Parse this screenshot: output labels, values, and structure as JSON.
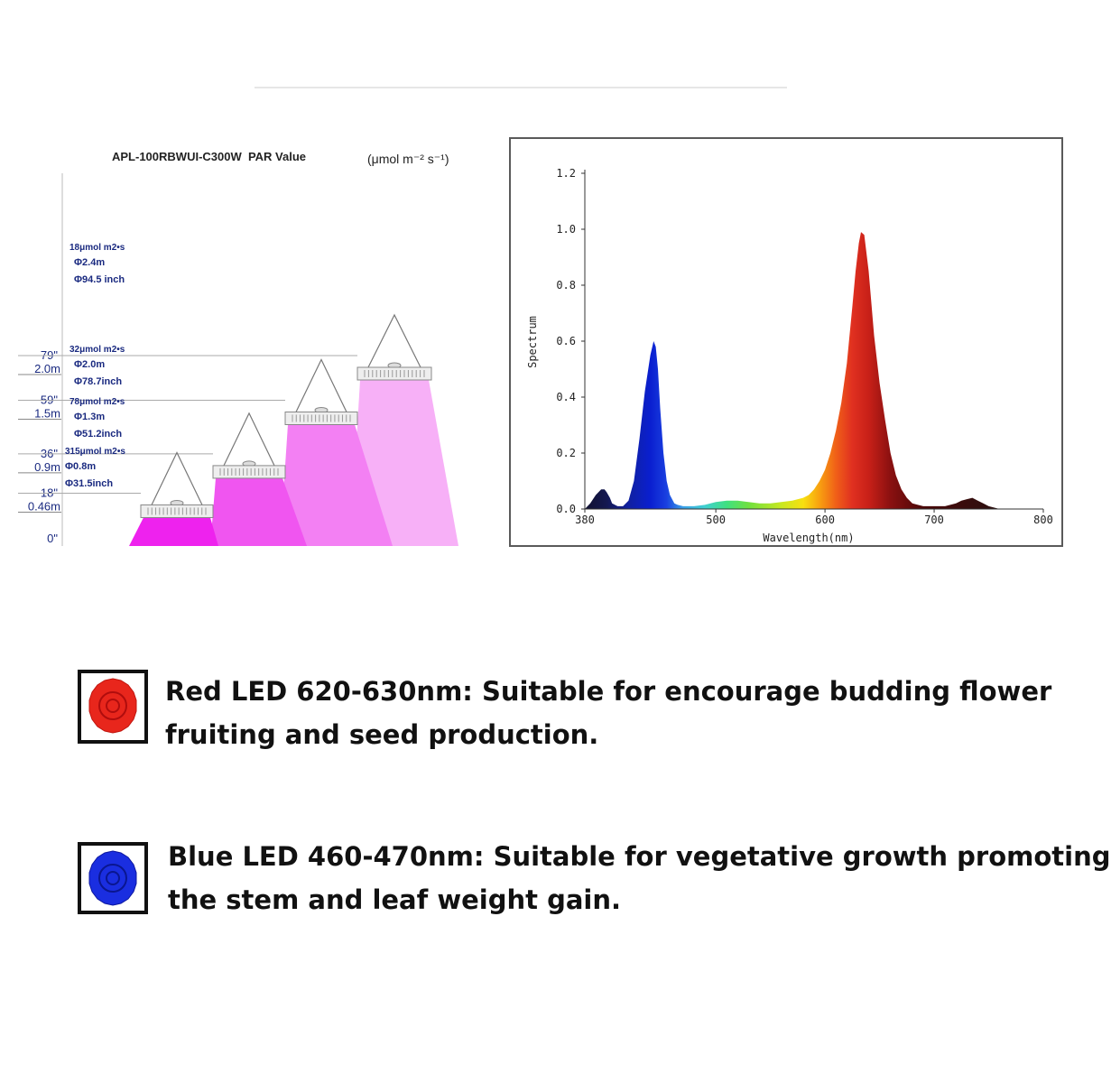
{
  "chart_data": [
    {
      "type": "diagram",
      "title": "APL-100RBWUI-C300W  PAR Value",
      "unit": "(μmol m⁻² s⁻¹)",
      "height_ticks": [
        {
          "inches": "0\"",
          "meters": ""
        },
        {
          "inches": "18\"",
          "meters": "0.46m"
        },
        {
          "inches": "36\"",
          "meters": "0.9m"
        },
        {
          "inches": "59\"",
          "meters": "1.5m"
        },
        {
          "inches": "79\"",
          "meters": "2.0m"
        }
      ],
      "levels": [
        {
          "height_m": 0.46,
          "par": "315μmol m2•s",
          "diameter_m": "Φ0.8m",
          "diameter_in": "Φ31.5inch",
          "color": "#ee22ee"
        },
        {
          "height_m": 0.9,
          "par": "78μmol m2•s",
          "diameter_m": "Φ1.3m",
          "diameter_in": "Φ51.2inch",
          "color": "#f055f0"
        },
        {
          "height_m": 1.5,
          "par": "32μmol m2•s",
          "diameter_m": "Φ2.0m",
          "diameter_in": "Φ78.7inch",
          "color": "#f380f3"
        },
        {
          "height_m": 2.0,
          "par": "18μmol m2•s",
          "diameter_m": "Φ2.4m",
          "diameter_in": "Φ94.5 inch",
          "color": "#f7b0f7"
        }
      ]
    },
    {
      "type": "area",
      "xlabel": "Wavelength(nm)",
      "ylabel": "Spectrum",
      "xlim": [
        380,
        800
      ],
      "ylim": [
        0,
        1.2
      ],
      "xticks": [
        "380",
        "500",
        "600",
        "700",
        "800"
      ],
      "yticks": [
        "0.0",
        "0.2",
        "0.4",
        "0.6",
        "0.8",
        "1.0",
        "1.2"
      ],
      "grid": false,
      "series": [
        {
          "x": [
            380,
            385,
            390,
            395,
            398,
            400,
            403,
            405,
            410,
            415,
            420,
            425,
            430,
            435,
            440,
            443,
            445,
            447,
            449,
            452,
            455,
            458,
            462,
            465,
            470,
            475,
            480,
            490,
            500,
            510,
            520,
            530,
            540,
            550,
            560,
            570,
            580,
            585,
            590,
            595,
            600,
            605,
            610,
            615,
            620,
            625,
            628,
            631,
            633,
            636,
            640,
            645,
            650,
            655,
            660,
            665,
            670,
            675,
            680,
            690,
            700,
            710,
            720,
            725,
            730,
            735,
            740,
            745,
            750,
            760
          ],
          "y": [
            0.0,
            0.02,
            0.05,
            0.07,
            0.07,
            0.06,
            0.04,
            0.02,
            0.01,
            0.01,
            0.03,
            0.1,
            0.25,
            0.42,
            0.55,
            0.6,
            0.58,
            0.5,
            0.36,
            0.2,
            0.1,
            0.05,
            0.02,
            0.015,
            0.01,
            0.01,
            0.01,
            0.015,
            0.025,
            0.03,
            0.03,
            0.025,
            0.02,
            0.02,
            0.025,
            0.03,
            0.04,
            0.05,
            0.07,
            0.1,
            0.14,
            0.2,
            0.28,
            0.38,
            0.52,
            0.72,
            0.85,
            0.95,
            0.99,
            0.98,
            0.85,
            0.62,
            0.45,
            0.32,
            0.2,
            0.12,
            0.07,
            0.04,
            0.02,
            0.01,
            0.01,
            0.01,
            0.02,
            0.03,
            0.035,
            0.04,
            0.03,
            0.02,
            0.01,
            0.0
          ]
        }
      ]
    }
  ],
  "features": [
    {
      "line1": "Red LED 620-630nm: Suitable for encourage budding flower",
      "line2": "fruiting and seed production.",
      "icon": "red-led-icon",
      "color": "#e8261c"
    },
    {
      "line1": "Blue LED 460-470nm: Suitable for vegetative growth promoting",
      "line2": "the stem and leaf weight gain.",
      "icon": "blue-led-icon",
      "color": "#1a2ee0"
    }
  ]
}
